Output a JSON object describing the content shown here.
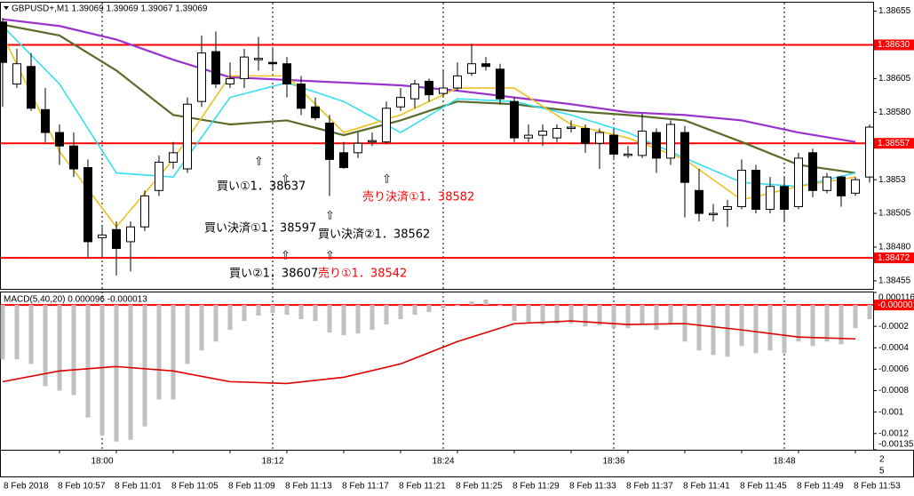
{
  "chart_data": [
    {
      "type": "candlestick",
      "title": "GBPUSD+,M1  1.39069 1.39069 1.39067 1.39069",
      "ylim": [
        1.38449,
        1.3866
      ],
      "yticks": [
        1.38655,
        1.38605,
        {
          "value": 1.3858,
          "label": "1.38580"
        },
        1.3853,
        1.38505,
        {
          "value": 1.3848,
          "label": "1.38480"
        },
        1.38455
      ],
      "hlines": [
        {
          "value": 1.3863,
          "label": "1.38630"
        },
        1.38557,
        1.38472
      ],
      "hline_color": "#ff0000",
      "x_labels": [
        "8 Feb 2018",
        "8 Feb 10:57",
        "8 Feb 11:01",
        "8 Feb 11:05",
        "8 Feb 11:09",
        "8 Feb 11:13",
        "8 Feb 11:17",
        "8 Feb 11:21",
        "8 Feb 11:25",
        "8 Feb 11:29",
        "8 Feb 11:33",
        "8 Feb 11:37",
        "8 Feb 11:41",
        "8 Feb 11:45",
        "8 Feb 11:49",
        "8 Feb 11:53"
      ],
      "x_labels_local": [
        "18:00",
        "18:12",
        "18:24",
        "18:36",
        "18:48"
      ],
      "axis_corner": [
        "2",
        "5"
      ],
      "ohlc": [
        [
          1.38647,
          1.3865,
          1.38584,
          1.38617
        ],
        [
          1.38601,
          1.38627,
          1.38598,
          1.38616
        ],
        [
          1.38614,
          1.38624,
          1.38581,
          1.38583
        ],
        [
          1.38582,
          1.38598,
          1.38558,
          1.38565
        ],
        [
          1.38565,
          1.38571,
          1.38541,
          1.38555
        ],
        [
          1.38555,
          1.38565,
          1.38532,
          1.38538
        ],
        [
          1.38539,
          1.38545,
          1.38472,
          1.38484
        ],
        [
          1.38487,
          1.38495,
          1.38472,
          1.38489
        ],
        [
          1.38493,
          1.38499,
          1.38459,
          1.38479
        ],
        [
          1.38484,
          1.38499,
          1.38462,
          1.38495
        ],
        [
          1.38495,
          1.38522,
          1.38492,
          1.38518
        ],
        [
          1.38522,
          1.38548,
          1.38518,
          1.38543
        ],
        [
          1.38543,
          1.38558,
          1.38538,
          1.3855
        ],
        [
          1.38538,
          1.38591,
          1.38535,
          1.38586
        ],
        [
          1.38588,
          1.38637,
          1.38584,
          1.38624
        ],
        [
          1.38625,
          1.3864,
          1.38598,
          1.38601
        ],
        [
          1.38601,
          1.38617,
          1.38598,
          1.38605
        ],
        [
          1.38605,
          1.38627,
          1.38598,
          1.38621
        ],
        [
          1.38619,
          1.38636,
          1.38611,
          1.3862
        ],
        [
          1.38617,
          1.38627,
          1.38611,
          1.38616
        ],
        [
          1.38616,
          1.38621,
          1.38591,
          1.38601
        ],
        [
          1.38601,
          1.38607,
          1.38578,
          1.38583
        ],
        [
          1.38584,
          1.38591,
          1.38574,
          1.38576
        ],
        [
          1.38572,
          1.38578,
          1.38518,
          1.38545
        ],
        [
          1.3855,
          1.38558,
          1.38538,
          1.38539
        ],
        [
          1.3855,
          1.38565,
          1.38546,
          1.38557
        ],
        [
          1.38558,
          1.38565,
          1.38555,
          1.38559
        ],
        [
          1.38558,
          1.38588,
          1.38557,
          1.38583
        ],
        [
          1.38584,
          1.38598,
          1.38581,
          1.38591
        ],
        [
          1.3859,
          1.38604,
          1.38583,
          1.38601
        ],
        [
          1.38603,
          1.38605,
          1.38588,
          1.38593
        ],
        [
          1.38594,
          1.38611,
          1.38591,
          1.38598
        ],
        [
          1.38598,
          1.38617,
          1.38596,
          1.38607
        ],
        [
          1.38609,
          1.38631,
          1.38607,
          1.38616
        ],
        [
          1.38616,
          1.38621,
          1.38611,
          1.38614
        ],
        [
          1.38612,
          1.38616,
          1.38586,
          1.3859
        ],
        [
          1.38588,
          1.38591,
          1.38558,
          1.38561
        ],
        [
          1.38561,
          1.38571,
          1.38558,
          1.38563
        ],
        [
          1.38563,
          1.38571,
          1.38555,
          1.38566
        ],
        [
          1.38561,
          1.38571,
          1.38558,
          1.38568
        ],
        [
          1.38568,
          1.38574,
          1.38565,
          1.38569
        ],
        [
          1.38568,
          1.38571,
          1.3855,
          1.38557
        ],
        [
          1.38557,
          1.38568,
          1.38538,
          1.38565
        ],
        [
          1.38563,
          1.38568,
          1.38546,
          1.38549
        ],
        [
          1.38548,
          1.38555,
          1.38546,
          1.38549
        ],
        [
          1.38548,
          1.38579,
          1.38546,
          1.38566
        ],
        [
          1.38565,
          1.38568,
          1.38535,
          1.38546
        ],
        [
          1.38546,
          1.38574,
          1.38541,
          1.38571
        ],
        [
          1.38565,
          1.3857,
          1.38502,
          1.38528
        ],
        [
          1.38522,
          1.38538,
          1.38499,
          1.38505
        ],
        [
          1.38504,
          1.38512,
          1.38499,
          1.38505
        ],
        [
          1.38508,
          1.38515,
          1.38495,
          1.3851
        ],
        [
          1.3851,
          1.38545,
          1.38508,
          1.38537
        ],
        [
          1.38537,
          1.38541,
          1.38505,
          1.38508
        ],
        [
          1.38508,
          1.38532,
          1.38505,
          1.38525
        ],
        [
          1.38525,
          1.38532,
          1.38499,
          1.38508
        ],
        [
          1.3851,
          1.3855,
          1.38508,
          1.38546
        ],
        [
          1.3855,
          1.38553,
          1.38517,
          1.38522
        ],
        [
          1.38522,
          1.38535,
          1.3852,
          1.38532
        ],
        [
          1.38532,
          1.38533,
          1.3851,
          1.38518
        ],
        [
          1.3852,
          1.38532,
          1.38518,
          1.3853
        ],
        [
          1.38532,
          1.38571,
          1.38528,
          1.38569
        ]
      ],
      "lines": [
        {
          "color": "#9933cc",
          "values": [
            1.38649,
            1.38644,
            1.38634,
            1.38619,
            1.38606,
            1.38604,
            1.38602,
            1.386,
            1.38596,
            1.38591,
            1.38586,
            1.3858,
            1.38578,
            1.38574,
            1.38565,
            1.38558
          ]
        },
        {
          "color": "#5a6b2a",
          "values": [
            1.38645,
            1.38637,
            1.38611,
            1.38578,
            1.38571,
            1.38574,
            1.38563,
            1.38574,
            1.38588,
            1.38586,
            1.38581,
            1.38578,
            1.38574,
            1.38558,
            1.38541,
            1.38535
          ]
        },
        {
          "color": "#33dff0",
          "values": [
            1.38644,
            1.38601,
            1.38535,
            1.38532,
            1.38591,
            1.38602,
            1.38588,
            1.38565,
            1.3859,
            1.38588,
            1.38578,
            1.38565,
            1.38546,
            1.38528,
            1.38525,
            1.38535
          ]
        },
        {
          "color": "#f0c020",
          "values": [
            1.38637,
            1.38551,
            1.38495,
            1.38545,
            1.38607,
            1.38607,
            1.38565,
            1.38578,
            1.38598,
            1.38598,
            1.38571,
            1.38561,
            1.38545,
            1.38515,
            1.38525,
            1.38532
          ]
        }
      ],
      "annotations": [
        {
          "text": "買い①1．38637",
          "color": "#000000"
        },
        {
          "text": "買い決済①1．38597",
          "color": "#000000"
        },
        {
          "text": "買い決済②1．38562",
          "color": "#000000"
        },
        {
          "text": "買い②1．38607",
          "color": "#000000"
        },
        {
          "text": "売り①1．38542",
          "color": "#ff0000"
        },
        {
          "text": "売り決済①1．38582",
          "color": "#ff0000"
        }
      ]
    },
    {
      "type": "bar",
      "title": "MACD(5,40,20) 0.000096 -0.000013",
      "ylim": [
        -0.001351,
        0.000116
      ],
      "yticks": [
        0.000116,
        -0.0002,
        -0.0004,
        -0.0006,
        -0.0008,
        -0.001,
        -0.0012,
        -0.001351
      ],
      "hlines": [
        -1e-06
      ],
      "hline_color": "#ff0000",
      "color": "#c0c0c0",
      "values": [
        -0.000508,
        -0.000508,
        -0.00055,
        -0.000758,
        -0.0008,
        -0.000841,
        -0.00105,
        -0.001216,
        -0.001275,
        -0.001258,
        -0.001133,
        -0.000883,
        -0.000883,
        -0.00055,
        -0.000425,
        -0.000342,
        -0.000233,
        -0.00015,
        -0.0001,
        -7.5e-05,
        -9.2e-05,
        -0.000133,
        -0.00015,
        -0.000258,
        -0.000283,
        -0.000267,
        -0.000233,
        -0.000183,
        -0.000133,
        -9.2e-05,
        -6.7e-05,
        -3.3e-05,
        -8e-06,
        3.3e-05,
        5e-05,
        -8e-06,
        -0.00015,
        -0.000175,
        -0.000183,
        -0.000175,
        -0.000175,
        -0.0002,
        -0.000192,
        -0.000217,
        -0.000217,
        -0.000175,
        -0.000233,
        -0.000183,
        -0.000342,
        -0.000425,
        -0.000467,
        -0.000483,
        -0.000383,
        -0.00045,
        -0.000425,
        -0.00045,
        -0.000342,
        -0.000383,
        -0.000342,
        -0.000367,
        -0.000217,
        -0.000133
      ],
      "signal": {
        "color": "#dd0000",
        "values": [
          -0.000716,
          -0.000616,
          -0.000575,
          -0.000616,
          -0.000716,
          -0.000733,
          -0.000675,
          -0.00055,
          -0.000342,
          -0.000175,
          -0.00015,
          -0.000183,
          -0.000175,
          -0.000233,
          -0.0003,
          -0.000317
        ]
      }
    }
  ]
}
